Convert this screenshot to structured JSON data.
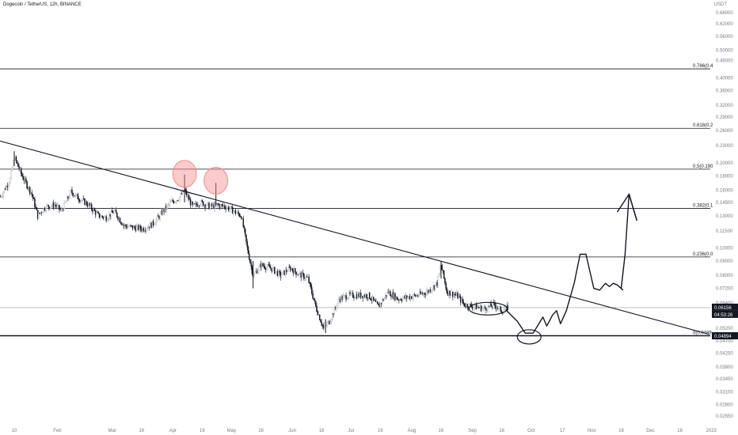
{
  "header": {
    "symbol_title": "Dogecoin / TetherUS, 12h, BINANCE",
    "currency": "USDT"
  },
  "chart_data": {
    "type": "candlestick",
    "symbol": "DOGEUSDT",
    "interval": "12h",
    "exchange": "BINANCE",
    "y_scale": "log",
    "ylim": [
      0.0245,
      0.72
    ],
    "y_ticks": [
      "0.68000",
      "0.62000",
      "0.56000",
      "0.50000",
      "0.46000",
      "0.40000",
      "0.36000",
      "0.32000",
      "0.29000",
      "0.26000",
      "0.23000",
      "0.20000",
      "0.18000",
      "0.16000",
      "0.14500",
      "0.13000",
      "0.11500",
      "0.10000",
      "0.09000",
      "0.08000",
      "0.07200",
      "0.06400",
      "0.05750",
      "0.05200",
      "0.04700",
      "0.04250",
      "0.03800",
      "0.03450",
      "0.03100",
      "0.02800",
      "0.02550"
    ],
    "x_ticks": [
      "10",
      "Feb",
      "Mar",
      "16",
      "Apr",
      "16",
      "May",
      "16",
      "Jun",
      "16",
      "Jul",
      "16",
      "Aug",
      "16",
      "Sep",
      "16",
      "Oct",
      "17",
      "Nov",
      "16",
      "Dec",
      "16",
      "2023"
    ],
    "x_dates": [
      "2022-01-10",
      "2022-02-01",
      "2022-03-01",
      "2022-03-16",
      "2022-04-01",
      "2022-04-16",
      "2022-05-01",
      "2022-05-16",
      "2022-06-01",
      "2022-06-16",
      "2022-07-01",
      "2022-07-16",
      "2022-08-01",
      "2022-08-16",
      "2022-09-01",
      "2022-09-16",
      "2022-10-01",
      "2022-10-17",
      "2022-11-01",
      "2022-11-16",
      "2022-12-01",
      "2022-12-16",
      "2023-01-01"
    ],
    "fib_levels": [
      {
        "label": "0.786(0.4",
        "value": 0.43
      },
      {
        "label": "0.618(0.2",
        "value": 0.265
      },
      {
        "label": "0.5(0.190",
        "value": 0.19
      },
      {
        "label": "0.382(0.1",
        "value": 0.138
      },
      {
        "label": "0.236(0.0",
        "value": 0.093
      },
      {
        "label": "0(0.0489",
        "value": 0.04894
      }
    ],
    "price_labels": [
      {
        "label": "0.06156",
        "value": 0.06156,
        "style": "current"
      },
      {
        "label": "04:53:26",
        "style": "countdown"
      },
      {
        "label": "0.04894",
        "value": 0.04894,
        "style": "level"
      }
    ],
    "price_path": [
      [
        "2022-01-03",
        0.152
      ],
      [
        "2022-01-08",
        0.175
      ],
      [
        "2022-01-10",
        0.21
      ],
      [
        "2022-01-14",
        0.18
      ],
      [
        "2022-01-19",
        0.155
      ],
      [
        "2022-01-22",
        0.13
      ],
      [
        "2022-01-26",
        0.14
      ],
      [
        "2022-01-31",
        0.142
      ],
      [
        "2022-02-03",
        0.135
      ],
      [
        "2022-02-08",
        0.158
      ],
      [
        "2022-02-12",
        0.15
      ],
      [
        "2022-02-17",
        0.142
      ],
      [
        "2022-02-22",
        0.13
      ],
      [
        "2022-02-26",
        0.128
      ],
      [
        "2022-03-02",
        0.135
      ],
      [
        "2022-03-07",
        0.12
      ],
      [
        "2022-03-12",
        0.118
      ],
      [
        "2022-03-17",
        0.117
      ],
      [
        "2022-03-22",
        0.122
      ],
      [
        "2022-03-27",
        0.135
      ],
      [
        "2022-03-31",
        0.145
      ],
      [
        "2022-04-04",
        0.15
      ],
      [
        "2022-04-07",
        0.16
      ],
      [
        "2022-04-11",
        0.14
      ],
      [
        "2022-04-15",
        0.145
      ],
      [
        "2022-04-20",
        0.14
      ],
      [
        "2022-04-24",
        0.142
      ],
      [
        "2022-04-28",
        0.14
      ],
      [
        "2022-05-02",
        0.135
      ],
      [
        "2022-05-06",
        0.13
      ],
      [
        "2022-05-09",
        0.1
      ],
      [
        "2022-05-12",
        0.08
      ],
      [
        "2022-05-16",
        0.087
      ],
      [
        "2022-05-21",
        0.085
      ],
      [
        "2022-05-26",
        0.08
      ],
      [
        "2022-05-31",
        0.085
      ],
      [
        "2022-06-04",
        0.081
      ],
      [
        "2022-06-09",
        0.078
      ],
      [
        "2022-06-13",
        0.062
      ],
      [
        "2022-06-17",
        0.052
      ],
      [
        "2022-06-20",
        0.055
      ],
      [
        "2022-06-25",
        0.066
      ],
      [
        "2022-06-30",
        0.068
      ],
      [
        "2022-07-05",
        0.068
      ],
      [
        "2022-07-10",
        0.068
      ],
      [
        "2022-07-15",
        0.062
      ],
      [
        "2022-07-20",
        0.07
      ],
      [
        "2022-07-25",
        0.066
      ],
      [
        "2022-07-30",
        0.067
      ],
      [
        "2022-08-04",
        0.068
      ],
      [
        "2022-08-09",
        0.07
      ],
      [
        "2022-08-14",
        0.075
      ],
      [
        "2022-08-16",
        0.087
      ],
      [
        "2022-08-19",
        0.07
      ],
      [
        "2022-08-24",
        0.068
      ],
      [
        "2022-08-28",
        0.063
      ],
      [
        "2022-09-02",
        0.062
      ],
      [
        "2022-09-07",
        0.061
      ],
      [
        "2022-09-12",
        0.063
      ],
      [
        "2022-09-16",
        0.06
      ],
      [
        "2022-09-19",
        0.06156
      ]
    ],
    "trendline": {
      "from": [
        "2021-12-28",
        0.245
      ],
      "to": [
        "2022-12-31",
        0.0495
      ]
    },
    "annotations": [
      {
        "type": "circle",
        "at": [
          "2022-04-07",
          0.183
        ],
        "color": "#f28b8b"
      },
      {
        "type": "circle",
        "at": [
          "2022-04-23",
          0.173
        ],
        "color": "#f28b8b"
      },
      {
        "type": "ellipse",
        "at": [
          "2022-09-09",
          0.061
        ]
      },
      {
        "type": "ellipse",
        "at": [
          "2022-09-30",
          0.0485
        ]
      },
      {
        "type": "projection-path",
        "points": [
          [
            "2022-09-18",
            0.0605
          ],
          [
            "2022-09-24",
            0.055
          ],
          [
            "2022-09-28",
            0.05
          ],
          [
            "2022-10-02",
            0.05
          ],
          [
            "2022-10-05",
            0.054
          ],
          [
            "2022-10-07",
            0.057
          ],
          [
            "2022-10-09",
            0.053
          ],
          [
            "2022-10-12",
            0.058
          ],
          [
            "2022-10-14",
            0.06
          ],
          [
            "2022-10-16",
            0.054
          ],
          [
            "2022-10-19",
            0.06
          ],
          [
            "2022-10-23",
            0.075
          ],
          [
            "2022-10-26",
            0.095
          ],
          [
            "2022-10-29",
            0.095
          ],
          [
            "2022-11-02",
            0.072
          ],
          [
            "2022-11-05",
            0.071
          ],
          [
            "2022-11-08",
            0.075
          ],
          [
            "2022-11-10",
            0.073
          ],
          [
            "2022-11-12",
            0.075
          ],
          [
            "2022-11-14",
            0.074
          ],
          [
            "2022-11-17",
            0.071
          ]
        ]
      },
      {
        "type": "projection-arrow",
        "points": [
          [
            "2022-11-16",
            0.072
          ],
          [
            "2022-11-18",
            0.095
          ],
          [
            "2022-11-20",
            0.155
          ],
          [
            "2022-11-24",
            0.125
          ]
        ],
        "head": [
          [
            "2022-11-14",
            0.134
          ],
          [
            "2022-11-20",
            0.155
          ],
          [
            "2022-11-24",
            0.125
          ]
        ]
      }
    ],
    "colors": {
      "up": "#b2b5be",
      "down": "#131722",
      "line": "#131722",
      "circle": "#f28b8b",
      "current_price_bg": "#131722",
      "level_bg": "#131722",
      "grid": "#d1d4dc"
    }
  }
}
